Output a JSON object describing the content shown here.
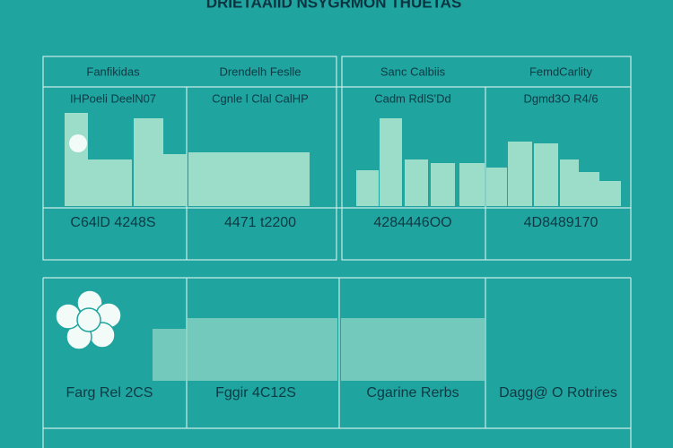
{
  "title": "DRIETAAIID NSYGRMON THUETAS",
  "panel1": {
    "headers": [
      "Fanfikidas",
      "Drendelh Feslle",
      "Sanc Calbiis",
      "FemdCarlity"
    ],
    "subheaders": [
      "IHPoeli DeelN07",
      "Cgnle l Clal CalHP",
      "Cadm RdlS'Dd",
      "Dgmd3O R4/6"
    ],
    "values": [
      "C64lD 4248S",
      "4471 t2200",
      "4284446OO",
      "4D8489170"
    ]
  },
  "panel2": {
    "labels": [
      "Farg Rel 2CS",
      "Fggir 4C12S",
      "Cgarine Rerbs",
      "Dagg@ O Rotrires"
    ]
  }
}
